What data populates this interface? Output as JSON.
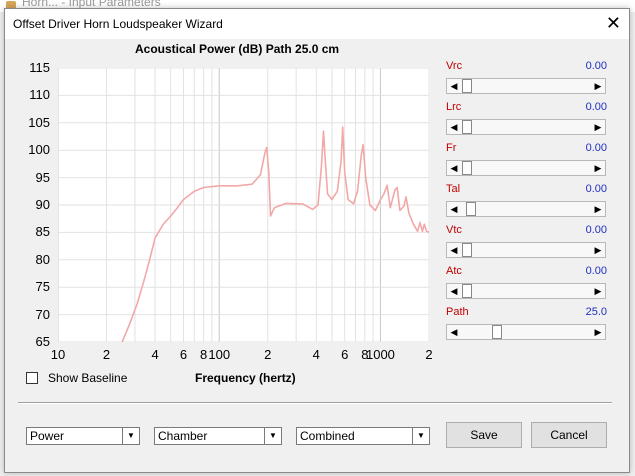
{
  "background_window": {
    "title": "Horn... - Input Parameters"
  },
  "dialog": {
    "title": "Offset Driver Horn Loudspeaker Wizard",
    "close_glyph": "✕"
  },
  "chart_header": {
    "title": "Acoustical Power (dB)   Path 25.0 cm"
  },
  "chart_data": {
    "type": "line",
    "title": "Acoustical Power (dB)   Path 25.0 cm",
    "xlabel": "Frequency (hertz)",
    "ylabel": "",
    "xscale": "log",
    "xlim": [
      10,
      2000
    ],
    "ylim": [
      65,
      115
    ],
    "grid": true,
    "yticks": [
      "115",
      "110",
      "105",
      "100",
      "95",
      "90",
      "85",
      "80",
      "75",
      "70",
      "65"
    ],
    "xticks": [
      {
        "label": "10",
        "value": 10
      },
      {
        "label": "2",
        "value": 20
      },
      {
        "label": "4",
        "value": 40
      },
      {
        "label": "6",
        "value": 60
      },
      {
        "label": "8",
        "value": 80
      },
      {
        "label": "100",
        "value": 100
      },
      {
        "label": "2",
        "value": 200
      },
      {
        "label": "4",
        "value": 400
      },
      {
        "label": "6",
        "value": 600
      },
      {
        "label": "8",
        "value": 800
      },
      {
        "label": "1000",
        "value": 1000
      },
      {
        "label": "2",
        "value": 2000
      }
    ],
    "series": [
      {
        "color": "#f3a8a8",
        "points": [
          [
            25,
            65
          ],
          [
            28,
            68.5
          ],
          [
            31,
            72
          ],
          [
            34,
            76
          ],
          [
            37,
            80
          ],
          [
            40,
            84
          ],
          [
            45,
            86.5
          ],
          [
            50,
            88
          ],
          [
            55,
            89.5
          ],
          [
            60,
            91
          ],
          [
            70,
            92.5
          ],
          [
            80,
            93.2
          ],
          [
            100,
            93.5
          ],
          [
            130,
            93.5
          ],
          [
            160,
            93.8
          ],
          [
            180,
            95.5
          ],
          [
            192,
            99.5
          ],
          [
            197,
            100.5
          ],
          [
            203,
            96
          ],
          [
            208,
            88
          ],
          [
            220,
            89.5
          ],
          [
            260,
            90.3
          ],
          [
            330,
            90.2
          ],
          [
            380,
            89.2
          ],
          [
            410,
            90
          ],
          [
            430,
            97
          ],
          [
            443,
            103.5
          ],
          [
            455,
            98
          ],
          [
            470,
            92
          ],
          [
            500,
            91
          ],
          [
            540,
            92.5
          ],
          [
            570,
            98
          ],
          [
            583,
            104.2
          ],
          [
            600,
            96
          ],
          [
            630,
            91
          ],
          [
            680,
            90.2
          ],
          [
            720,
            92.5
          ],
          [
            760,
            99
          ],
          [
            780,
            101
          ],
          [
            810,
            95
          ],
          [
            860,
            90
          ],
          [
            930,
            89
          ],
          [
            1000,
            91
          ],
          [
            1050,
            92
          ],
          [
            1100,
            93.6
          ],
          [
            1150,
            89.5
          ],
          [
            1230,
            92.8
          ],
          [
            1270,
            93.2
          ],
          [
            1320,
            89
          ],
          [
            1400,
            89.8
          ],
          [
            1440,
            91.5
          ],
          [
            1500,
            88.5
          ],
          [
            1600,
            86.5
          ],
          [
            1700,
            85.2
          ],
          [
            1760,
            86.8
          ],
          [
            1820,
            85.2
          ],
          [
            1870,
            86.5
          ],
          [
            1930,
            85.2
          ],
          [
            2000,
            85
          ]
        ]
      }
    ]
  },
  "params": [
    {
      "label": "Vrc",
      "value": "0.00",
      "pos": 0.0
    },
    {
      "label": "Lrc",
      "value": "0.00",
      "pos": 0.0
    },
    {
      "label": "Fr",
      "value": "0.00",
      "pos": 0.0
    },
    {
      "label": "Tal",
      "value": "0.00",
      "pos": 0.03
    },
    {
      "label": "Vtc",
      "value": "0.00",
      "pos": 0.0
    },
    {
      "label": "Atc",
      "value": "0.00",
      "pos": 0.0
    },
    {
      "label": "Path",
      "value": "25.0",
      "pos": 0.25
    }
  ],
  "controls": {
    "show_baseline_label": "Show Baseline",
    "show_baseline_checked": false,
    "select1": "Power",
    "select2": "Chamber",
    "select3": "Combined",
    "save_label": "Save",
    "cancel_label": "Cancel"
  },
  "icons": {
    "left_arrow": "◀",
    "right_arrow": "▶",
    "dropdown_arrow": "▼"
  }
}
